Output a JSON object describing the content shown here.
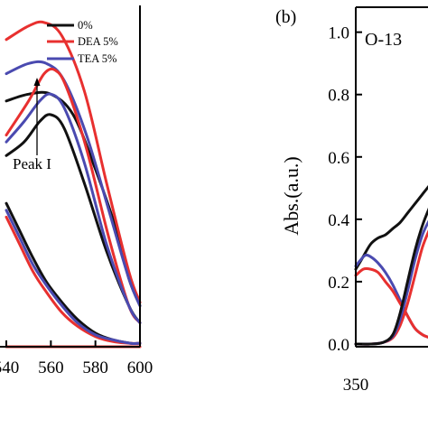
{
  "colors": {
    "s0": "#111111",
    "dea": "#e8302f",
    "tea": "#4a4ab0"
  },
  "chart_data": [
    {
      "type": "line",
      "xlim": [
        540,
        600
      ],
      "ylim": [
        0,
        1.0
      ],
      "x_ticks": [
        540,
        560,
        580,
        600
      ],
      "x_tick_labels": [
        "540",
        "560",
        "580",
        "600"
      ],
      "legend": {
        "placement": "top-right",
        "entries": [
          "0%",
          "DEA 5%",
          "TEA 5%"
        ]
      },
      "annotations": [
        "Peak I"
      ],
      "series": [
        {
          "name": "0%",
          "color": "#111111",
          "x": [
            540,
            550,
            560,
            570,
            580,
            590,
            595,
            600
          ],
          "y": [
            0.72,
            0.74,
            0.74,
            0.68,
            0.52,
            0.33,
            0.2,
            0.12
          ]
        },
        {
          "name": "DEA 5%",
          "color": "#e8302f",
          "x": [
            540,
            550,
            557,
            565,
            575,
            585,
            595,
            600
          ],
          "y": [
            0.9,
            0.94,
            0.95,
            0.91,
            0.75,
            0.48,
            0.22,
            0.13
          ]
        },
        {
          "name": "TEA 5%",
          "color": "#4a4ab0",
          "x": [
            540,
            550,
            558,
            566,
            576,
            586,
            595,
            600
          ],
          "y": [
            0.8,
            0.83,
            0.83,
            0.78,
            0.62,
            0.4,
            0.2,
            0.12
          ]
        },
        {
          "name": "",
          "color": "#111111",
          "x": [
            540,
            548,
            555,
            560,
            566,
            575,
            585,
            595,
            600
          ],
          "y": [
            0.56,
            0.6,
            0.66,
            0.68,
            0.64,
            0.48,
            0.28,
            0.12,
            0.07
          ]
        },
        {
          "name": "",
          "color": "#e8302f",
          "x": [
            540,
            550,
            557,
            562,
            567,
            576,
            586,
            595,
            600
          ],
          "y": [
            0.62,
            0.72,
            0.8,
            0.81,
            0.76,
            0.58,
            0.32,
            0.12,
            0.07
          ]
        },
        {
          "name": "",
          "color": "#4a4ab0",
          "x": [
            540,
            548,
            555,
            560,
            566,
            575,
            585,
            595,
            600
          ],
          "y": [
            0.6,
            0.66,
            0.72,
            0.74,
            0.7,
            0.54,
            0.3,
            0.12,
            0.07
          ]
        },
        {
          "name": "",
          "color": "#111111",
          "x": [
            540,
            546,
            552,
            558,
            565,
            572,
            580,
            588,
            596,
            600
          ],
          "y": [
            0.42,
            0.34,
            0.26,
            0.19,
            0.13,
            0.08,
            0.04,
            0.02,
            0.01,
            0.01
          ]
        },
        {
          "name": "",
          "color": "#e8302f",
          "x": [
            540,
            546,
            552,
            558,
            565,
            572,
            580,
            588,
            596,
            600
          ],
          "y": [
            0.38,
            0.3,
            0.22,
            0.16,
            0.1,
            0.06,
            0.03,
            0.015,
            0.01,
            0.01
          ]
        },
        {
          "name": "",
          "color": "#4a4ab0",
          "x": [
            540,
            546,
            552,
            558,
            565,
            572,
            580,
            588,
            596,
            600
          ],
          "y": [
            0.4,
            0.32,
            0.24,
            0.18,
            0.12,
            0.07,
            0.035,
            0.02,
            0.01,
            0.01
          ]
        },
        {
          "name": "",
          "color": "#e8302f",
          "x": [
            540,
            560,
            580,
            600
          ],
          "y": [
            0.0,
            0.0,
            0.0,
            0.0
          ]
        }
      ]
    },
    {
      "type": "line",
      "panel_label": "(b)",
      "inset_label": "O-13",
      "xlim": [
        350,
        410
      ],
      "ylim": [
        0,
        1.08
      ],
      "ylabel": "Abs.(a.u.)",
      "x_ticks": [
        350
      ],
      "x_tick_labels": [
        "350"
      ],
      "y_ticks": [
        0.0,
        0.2,
        0.4,
        0.6,
        0.8,
        1.0
      ],
      "y_tick_labels": [
        "0.0",
        "0.2",
        "0.4",
        "0.6",
        "0.8",
        "1.0"
      ],
      "series": [
        {
          "name": "",
          "color": "#111111",
          "x": [
            350,
            356,
            362,
            368,
            374,
            380,
            386,
            392,
            398,
            404,
            410
          ],
          "y": [
            0.24,
            0.28,
            0.32,
            0.34,
            0.35,
            0.37,
            0.39,
            0.42,
            0.45,
            0.48,
            0.51
          ]
        },
        {
          "name": "",
          "color": "#4a4ab0",
          "x": [
            350,
            354,
            358,
            362,
            368,
            374,
            380,
            386,
            392,
            398,
            404,
            410
          ],
          "y": [
            0.25,
            0.27,
            0.285,
            0.28,
            0.26,
            0.23,
            0.19,
            0.14,
            0.09,
            0.05,
            0.03,
            0.02
          ]
        },
        {
          "name": "",
          "color": "#e8302f",
          "x": [
            350,
            356,
            362,
            368,
            374,
            380,
            386,
            392,
            398,
            404,
            410
          ],
          "y": [
            0.22,
            0.24,
            0.24,
            0.23,
            0.2,
            0.17,
            0.13,
            0.09,
            0.05,
            0.03,
            0.02
          ]
        },
        {
          "name": "",
          "color": "#e8302f",
          "x": [
            350,
            362,
            372,
            380,
            386,
            392,
            398,
            404,
            410
          ],
          "y": [
            0.0,
            0.0,
            0.005,
            0.02,
            0.06,
            0.13,
            0.22,
            0.31,
            0.37
          ]
        },
        {
          "name": "",
          "color": "#4a4ab0",
          "x": [
            350,
            362,
            372,
            380,
            386,
            392,
            398,
            404,
            410
          ],
          "y": [
            0.0,
            0.0,
            0.005,
            0.025,
            0.08,
            0.17,
            0.27,
            0.35,
            0.4
          ]
        },
        {
          "name": "",
          "color": "#111111",
          "x": [
            350,
            362,
            372,
            380,
            386,
            392,
            398,
            404,
            410
          ],
          "y": [
            0.0,
            0.0,
            0.005,
            0.03,
            0.1,
            0.2,
            0.3,
            0.38,
            0.44
          ]
        }
      ]
    }
  ]
}
